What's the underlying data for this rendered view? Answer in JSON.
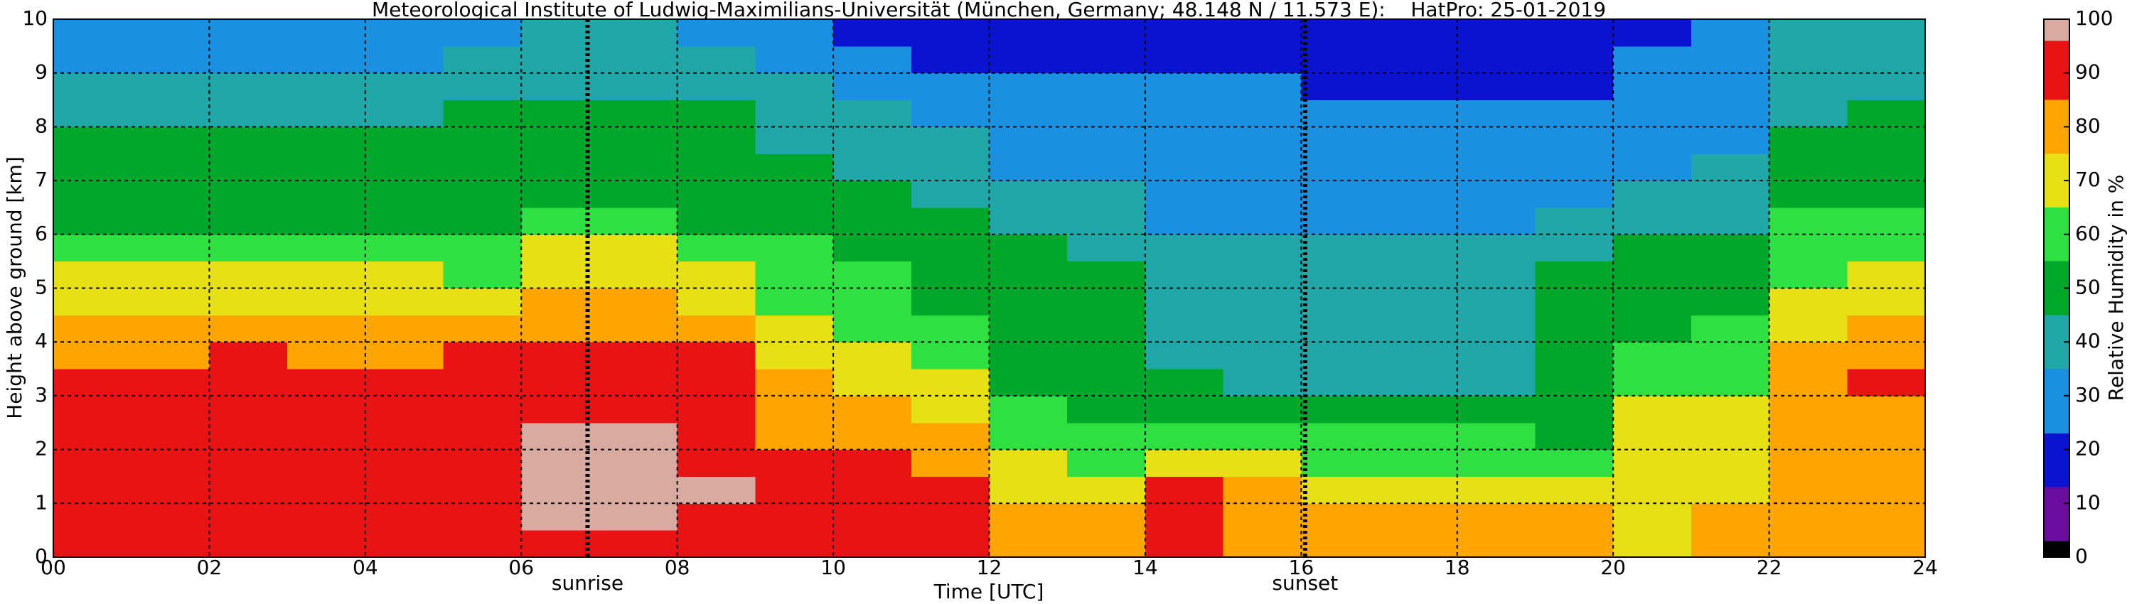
{
  "chart_data": {
    "type": "heatmap",
    "title": "Meteorological Institute of Ludwig-Maximilians-Universität (München, Germany; 48.148 N / 11.573 E):    HatPro: 25-01-2019",
    "xlabel": "Time [UTC]",
    "ylabel": "Height above ground [km]",
    "colorbar_label": "Relative Humidity in %",
    "xlim": [
      0,
      24
    ],
    "ylim": [
      0,
      10
    ],
    "xticks": [
      {
        "value": 0,
        "label": "00"
      },
      {
        "value": 2,
        "label": "02"
      },
      {
        "value": 4,
        "label": "04"
      },
      {
        "value": 6,
        "label": "06"
      },
      {
        "value": 8,
        "label": "08"
      },
      10,
      12,
      14,
      16,
      18,
      20,
      22,
      24
    ],
    "yticks": [
      0,
      1,
      2,
      3,
      4,
      5,
      6,
      7,
      8,
      9,
      10
    ],
    "grid": true,
    "clim": [
      0,
      100
    ],
    "cticks": [
      0,
      10,
      20,
      30,
      40,
      50,
      60,
      70,
      80,
      90,
      100
    ],
    "color_bounds": [
      0,
      3,
      13,
      23,
      35,
      45,
      55,
      65,
      75,
      85,
      96,
      100
    ],
    "colors": [
      "#000000",
      "#6a0d9e",
      "#0a14d0",
      "#1a90e0",
      "#20a8a8",
      "#00a82a",
      "#2ee040",
      "#e6e014",
      "#ffa500",
      "#e81414",
      "#d8aaa0"
    ],
    "annotations": [
      {
        "text": "sunrise",
        "x": 6.85
      },
      {
        "text": "sunset",
        "x": 16.05
      }
    ],
    "x": [
      0.5,
      1.5,
      2.5,
      3.5,
      4.5,
      5.5,
      6.5,
      7.5,
      8.5,
      9.5,
      10.5,
      11.5,
      12.5,
      13.5,
      14.5,
      15.5,
      16.5,
      17.5,
      18.5,
      19.5,
      20.5,
      21.5,
      22.5,
      23.5
    ],
    "y": [
      0.25,
      0.75,
      1.25,
      1.75,
      2.25,
      2.75,
      3.25,
      3.75,
      4.25,
      4.75,
      5.25,
      5.75,
      6.25,
      6.75,
      7.25,
      7.75,
      8.25,
      8.75,
      9.25,
      9.75
    ],
    "z": [
      [
        88,
        88,
        88,
        88,
        88,
        88,
        85,
        82,
        75,
        70,
        65,
        60,
        52,
        50,
        50,
        48,
        44,
        40,
        32,
        28
      ],
      [
        88,
        88,
        88,
        88,
        88,
        88,
        85,
        82,
        75,
        70,
        65,
        60,
        52,
        50,
        50,
        48,
        44,
        40,
        32,
        28
      ],
      [
        90,
        93,
        94,
        95,
        92,
        90,
        88,
        86,
        80,
        72,
        66,
        60,
        52,
        50,
        50,
        48,
        44,
        40,
        32,
        28
      ],
      [
        88,
        90,
        90,
        90,
        88,
        88,
        86,
        84,
        78,
        72,
        66,
        60,
        52,
        50,
        50,
        48,
        44,
        40,
        32,
        28
      ],
      [
        88,
        90,
        90,
        90,
        88,
        88,
        86,
        84,
        78,
        72,
        66,
        60,
        52,
        50,
        50,
        48,
        44,
        40,
        32,
        28
      ],
      [
        90,
        92,
        92,
        92,
        90,
        88,
        88,
        88,
        80,
        72,
        64,
        58,
        52,
        50,
        50,
        50,
        47,
        42,
        38,
        34
      ],
      [
        94,
        96,
        97,
        97,
        96,
        92,
        88,
        88,
        80,
        75,
        70,
        66,
        55,
        52,
        50,
        50,
        48,
        44,
        40,
        36
      ],
      [
        94,
        96,
        97,
        97,
        96,
        92,
        88,
        88,
        80,
        75,
        70,
        66,
        55,
        52,
        50,
        50,
        48,
        44,
        40,
        36
      ],
      [
        92,
        95,
        96,
        95,
        92,
        90,
        88,
        86,
        80,
        74,
        68,
        62,
        54,
        50,
        50,
        50,
        46,
        42,
        38,
        34
      ],
      [
        90,
        90,
        90,
        88,
        82,
        80,
        76,
        72,
        65,
        62,
        58,
        55,
        50,
        48,
        46,
        44,
        40,
        38,
        30,
        28
      ],
      [
        90,
        90,
        88,
        86,
        80,
        78,
        72,
        68,
        62,
        60,
        56,
        52,
        48,
        46,
        42,
        40,
        36,
        32,
        24,
        22
      ],
      [
        88,
        88,
        86,
        80,
        76,
        72,
        66,
        60,
        55,
        52,
        50,
        48,
        46,
        44,
        40,
        36,
        30,
        28,
        22,
        20
      ],
      [
        80,
        78,
        70,
        66,
        58,
        55,
        52,
        50,
        48,
        48,
        47,
        46,
        42,
        40,
        34,
        32,
        30,
        28,
        22,
        20
      ],
      [
        82,
        80,
        72,
        64,
        56,
        54,
        50,
        48,
        46,
        46,
        45,
        44,
        40,
        38,
        32,
        30,
        28,
        26,
        20,
        18
      ],
      [
        90,
        88,
        86,
        70,
        58,
        52,
        46,
        44,
        42,
        42,
        40,
        38,
        34,
        32,
        30,
        28,
        26,
        24,
        18,
        16
      ],
      [
        84,
        82,
        76,
        68,
        56,
        52,
        44,
        42,
        40,
        40,
        38,
        36,
        32,
        30,
        30,
        28,
        26,
        24,
        18,
        16
      ],
      [
        80,
        78,
        70,
        62,
        55,
        52,
        44,
        42,
        40,
        40,
        38,
        36,
        32,
        30,
        30,
        28,
        26,
        22,
        18,
        16
      ],
      [
        80,
        78,
        70,
        62,
        55,
        52,
        44,
        42,
        40,
        40,
        38,
        36,
        32,
        30,
        30,
        28,
        26,
        22,
        18,
        16
      ],
      [
        80,
        78,
        70,
        62,
        55,
        52,
        44,
        42,
        40,
        40,
        38,
        36,
        32,
        30,
        30,
        28,
        26,
        22,
        18,
        16
      ],
      [
        80,
        76,
        66,
        58,
        52,
        50,
        48,
        48,
        46,
        48,
        48,
        44,
        38,
        34,
        30,
        28,
        26,
        22,
        20,
        18
      ],
      [
        74,
        74,
        72,
        70,
        66,
        66,
        62,
        60,
        52,
        50,
        48,
        46,
        40,
        38,
        34,
        32,
        30,
        28,
        24,
        22
      ],
      [
        76,
        76,
        74,
        74,
        70,
        68,
        64,
        60,
        55,
        52,
        50,
        48,
        44,
        40,
        36,
        34,
        32,
        30,
        28,
        26
      ],
      [
        78,
        78,
        78,
        78,
        80,
        80,
        82,
        80,
        74,
        70,
        64,
        60,
        55,
        52,
        50,
        48,
        44,
        42,
        38,
        36
      ],
      [
        80,
        80,
        82,
        82,
        84,
        84,
        86,
        84,
        76,
        72,
        66,
        62,
        56,
        52,
        50,
        48,
        46,
        44,
        40,
        38
      ]
    ]
  }
}
